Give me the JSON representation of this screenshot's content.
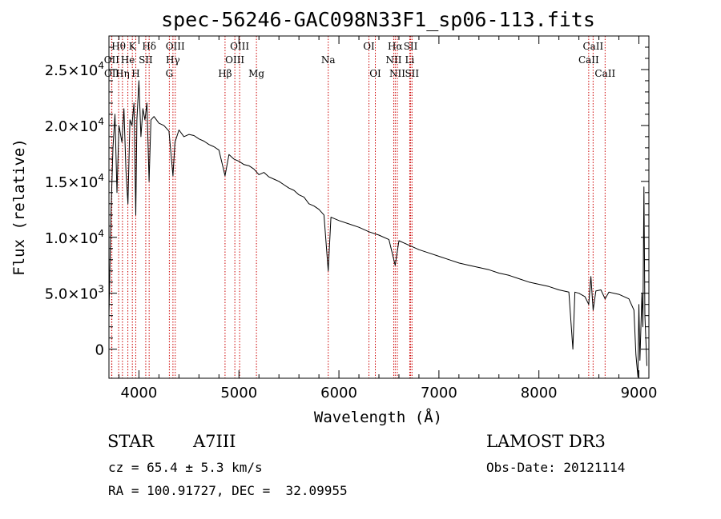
{
  "chart_data": {
    "type": "line",
    "title": "spec-56246-GAC098N33F1_sp06-113.fits",
    "xlabel": "Wavelength (Å)",
    "ylabel": "Flux (relative)",
    "xlim": [
      3700,
      9100
    ],
    "ylim": [
      -2600,
      28000
    ],
    "x_ticks": [
      4000,
      5000,
      6000,
      7000,
      8000,
      9000
    ],
    "x_tick_labels": [
      "4000",
      "5000",
      "6000",
      "7000",
      "8000",
      "9000"
    ],
    "y_ticks": [
      0,
      5000,
      10000,
      15000,
      20000,
      25000
    ],
    "y_tick_labels": [
      {
        "mant": "0",
        "exp": ""
      },
      {
        "mant": "5.0×10",
        "exp": "3"
      },
      {
        "mant": "1.0×10",
        "exp": "4"
      },
      {
        "mant": "1.5×10",
        "exp": "4"
      },
      {
        "mant": "2.0×10",
        "exp": "4"
      },
      {
        "mant": "2.5×10",
        "exp": "4"
      }
    ],
    "series": [
      {
        "name": "flux",
        "color": "#000000",
        "points": [
          [
            3700,
            3000
          ],
          [
            3720,
            12000
          ],
          [
            3740,
            18000
          ],
          [
            3760,
            21000
          ],
          [
            3780,
            14000
          ],
          [
            3800,
            20000
          ],
          [
            3830,
            18500
          ],
          [
            3850,
            21500
          ],
          [
            3870,
            16000
          ],
          [
            3890,
            13000
          ],
          [
            3910,
            20500
          ],
          [
            3930,
            20000
          ],
          [
            3950,
            22000
          ],
          [
            3968,
            12000
          ],
          [
            3980,
            20500
          ],
          [
            4000,
            24000
          ],
          [
            4020,
            19000
          ],
          [
            4040,
            21500
          ],
          [
            4060,
            20500
          ],
          [
            4080,
            22000
          ],
          [
            4101,
            15000
          ],
          [
            4120,
            20500
          ],
          [
            4150,
            20800
          ],
          [
            4200,
            20200
          ],
          [
            4250,
            20000
          ],
          [
            4300,
            19500
          ],
          [
            4340,
            15500
          ],
          [
            4360,
            18500
          ],
          [
            4400,
            19600
          ],
          [
            4450,
            19000
          ],
          [
            4500,
            19200
          ],
          [
            4550,
            19100
          ],
          [
            4600,
            18800
          ],
          [
            4650,
            18600
          ],
          [
            4700,
            18300
          ],
          [
            4750,
            18100
          ],
          [
            4800,
            17800
          ],
          [
            4861,
            15500
          ],
          [
            4900,
            17400
          ],
          [
            4950,
            17000
          ],
          [
            5000,
            16800
          ],
          [
            5050,
            16500
          ],
          [
            5100,
            16400
          ],
          [
            5150,
            16100
          ],
          [
            5200,
            15600
          ],
          [
            5250,
            15800
          ],
          [
            5300,
            15400
          ],
          [
            5350,
            15200
          ],
          [
            5400,
            15000
          ],
          [
            5450,
            14700
          ],
          [
            5500,
            14400
          ],
          [
            5550,
            14200
          ],
          [
            5600,
            13800
          ],
          [
            5650,
            13600
          ],
          [
            5700,
            13000
          ],
          [
            5750,
            12800
          ],
          [
            5800,
            12500
          ],
          [
            5850,
            12000
          ],
          [
            5893,
            7000
          ],
          [
            5920,
            11800
          ],
          [
            6000,
            11500
          ],
          [
            6100,
            11200
          ],
          [
            6200,
            10900
          ],
          [
            6300,
            10500
          ],
          [
            6400,
            10200
          ],
          [
            6500,
            9800
          ],
          [
            6563,
            7500
          ],
          [
            6600,
            9700
          ],
          [
            6650,
            9500
          ],
          [
            6700,
            9300
          ],
          [
            6800,
            8900
          ],
          [
            6900,
            8600
          ],
          [
            7000,
            8300
          ],
          [
            7100,
            8000
          ],
          [
            7200,
            7700
          ],
          [
            7300,
            7500
          ],
          [
            7400,
            7300
          ],
          [
            7500,
            7100
          ],
          [
            7600,
            6800
          ],
          [
            7700,
            6600
          ],
          [
            7800,
            6300
          ],
          [
            7900,
            6000
          ],
          [
            8000,
            5800
          ],
          [
            8100,
            5600
          ],
          [
            8200,
            5300
          ],
          [
            8300,
            5100
          ],
          [
            8340,
            0
          ],
          [
            8360,
            5100
          ],
          [
            8400,
            5000
          ],
          [
            8460,
            4700
          ],
          [
            8498,
            4000
          ],
          [
            8520,
            6500
          ],
          [
            8542,
            3500
          ],
          [
            8570,
            5200
          ],
          [
            8620,
            5300
          ],
          [
            8662,
            4500
          ],
          [
            8700,
            5100
          ],
          [
            8800,
            4900
          ],
          [
            8900,
            4500
          ],
          [
            8950,
            3500
          ],
          [
            8970,
            -500
          ],
          [
            8990,
            -2500
          ],
          [
            9000,
            4000
          ],
          [
            9010,
            -1000
          ],
          [
            9030,
            5000
          ],
          [
            9040,
            2000
          ],
          [
            9050,
            14500
          ],
          [
            9060,
            3000
          ],
          [
            9080,
            -1500
          ]
        ]
      }
    ],
    "lines": [
      {
        "label": "Hθ",
        "x": 3797,
        "row": 0
      },
      {
        "label": "OII",
        "x": 3727,
        "row": 1
      },
      {
        "label": "OII",
        "x": 3729,
        "row": 2
      },
      {
        "label": "He",
        "x": 3889,
        "row": 1
      },
      {
        "label": "Hη",
        "x": 3835,
        "row": 2
      },
      {
        "label": "K",
        "x": 3934,
        "row": 0
      },
      {
        "label": "H",
        "x": 3968,
        "row": 2
      },
      {
        "label": "SII",
        "x": 4068,
        "row": 1
      },
      {
        "label": "Hδ",
        "x": 4102,
        "row": 0
      },
      {
        "label": "OIII",
        "x": 4363,
        "row": 0
      },
      {
        "label": "Hγ",
        "x": 4340,
        "row": 1
      },
      {
        "label": "G",
        "x": 4304,
        "row": 2
      },
      {
        "label": "Hβ",
        "x": 4861,
        "row": 2
      },
      {
        "label": "OIII",
        "x": 5007,
        "row": 0
      },
      {
        "label": "OIII",
        "x": 4959,
        "row": 1
      },
      {
        "label": "Mg",
        "x": 5175,
        "row": 2
      },
      {
        "label": "Na",
        "x": 5893,
        "row": 1
      },
      {
        "label": "OI",
        "x": 6300,
        "row": 0
      },
      {
        "label": "OI",
        "x": 6364,
        "row": 2
      },
      {
        "label": "Hα",
        "x": 6563,
        "row": 0
      },
      {
        "label": "NII",
        "x": 6548,
        "row": 1
      },
      {
        "label": "NII",
        "x": 6584,
        "row": 2
      },
      {
        "label": "SII",
        "x": 6717,
        "row": 0
      },
      {
        "label": "SII",
        "x": 6731,
        "row": 2
      },
      {
        "label": "Li",
        "x": 6708,
        "row": 1
      },
      {
        "label": "CaII",
        "x": 8542,
        "row": 0
      },
      {
        "label": "CaII",
        "x": 8498,
        "row": 1
      },
      {
        "label": "CaII",
        "x": 8662,
        "row": 2
      }
    ],
    "line_color": "#cc0000"
  },
  "info": {
    "object_type": "STAR",
    "subclass": "A7III",
    "survey": "LAMOST DR3",
    "cz": "cz = 65.4 ± 5.3 km/s",
    "obs_date": "Obs-Date: 20121114",
    "coords": "RA = 100.91727, DEC =  32.09955"
  }
}
